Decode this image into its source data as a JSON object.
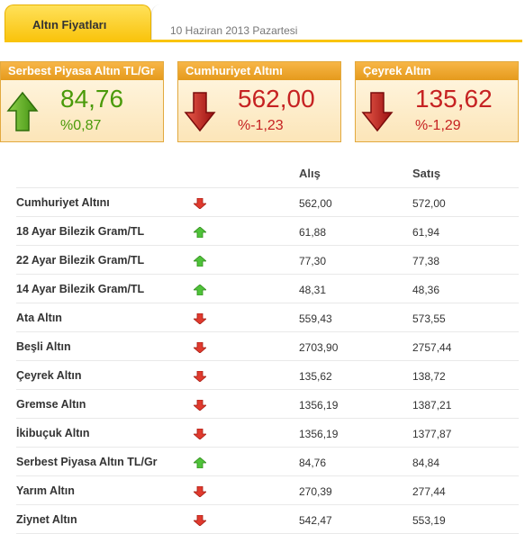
{
  "tab": {
    "title": "Altın Fiyatları",
    "date": "10 Haziran 2013 Pazartesi"
  },
  "cards": [
    {
      "title": "Serbest Piyasa Altın TL/Gr",
      "value": "84,76",
      "change": "%0,87",
      "direction": "up"
    },
    {
      "title": "Cumhuriyet Altını",
      "value": "562,00",
      "change": "%-1,23",
      "direction": "down"
    },
    {
      "title": "Çeyrek Altın",
      "value": "135,62",
      "change": "%-1,29",
      "direction": "down"
    }
  ],
  "table": {
    "headers": {
      "buy": "Alış",
      "sell": "Satış"
    },
    "rows": [
      {
        "name": "Cumhuriyet Altını",
        "direction": "down",
        "buy": "562,00",
        "sell": "572,00"
      },
      {
        "name": "18 Ayar Bilezik Gram/TL",
        "direction": "up",
        "buy": "61,88",
        "sell": "61,94"
      },
      {
        "name": "22 Ayar Bilezik Gram/TL",
        "direction": "up",
        "buy": "77,30",
        "sell": "77,38"
      },
      {
        "name": "14 Ayar Bilezik Gram/TL",
        "direction": "up",
        "buy": "48,31",
        "sell": "48,36"
      },
      {
        "name": "Ata Altın",
        "direction": "down",
        "buy": "559,43",
        "sell": "573,55"
      },
      {
        "name": "Beşli Altın",
        "direction": "down",
        "buy": "2703,90",
        "sell": "2757,44"
      },
      {
        "name": "Çeyrek Altın",
        "direction": "down",
        "buy": "135,62",
        "sell": "138,72"
      },
      {
        "name": "Gremse Altın",
        "direction": "down",
        "buy": "1356,19",
        "sell": "1387,21"
      },
      {
        "name": "İkibuçuk Altın",
        "direction": "down",
        "buy": "1356,19",
        "sell": "1377,87"
      },
      {
        "name": "Serbest Piyasa Altın TL/Gr",
        "direction": "up",
        "buy": "84,76",
        "sell": "84,84"
      },
      {
        "name": "Yarım Altın",
        "direction": "down",
        "buy": "270,39",
        "sell": "277,44"
      },
      {
        "name": "Ziynet Altın",
        "direction": "down",
        "buy": "542,47",
        "sell": "553,19"
      }
    ]
  },
  "colors": {
    "up": "#4a9a0a",
    "down": "#c62222",
    "accent": "#f9c40d",
    "card_header": "#e59a1c"
  }
}
